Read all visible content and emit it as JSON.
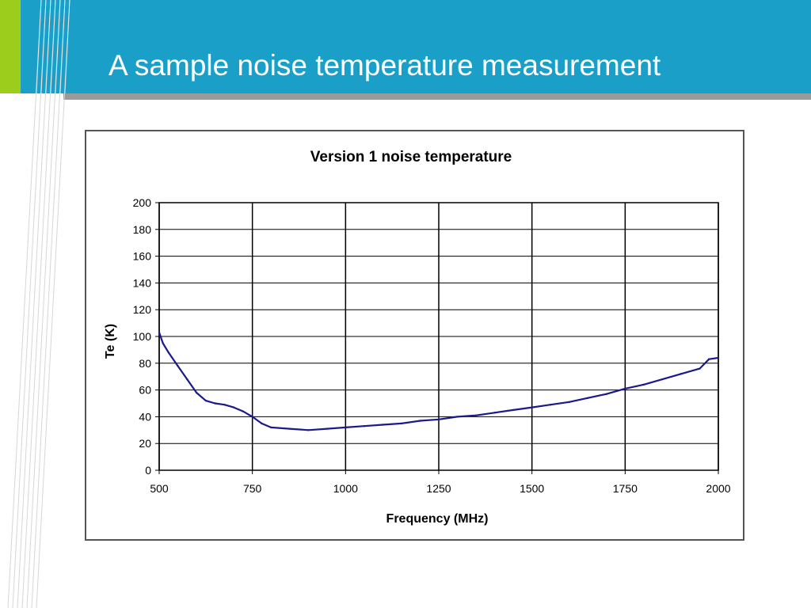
{
  "slide": {
    "title": "A sample noise temperature measurement"
  },
  "colors": {
    "header_band": "#1aa0c8",
    "accent_lime": "#9ccc1c",
    "rule_gray": "#9a9a9a",
    "series_line": "#1a1a8c"
  },
  "chart_data": {
    "type": "line",
    "title": "Version 1 noise temperature",
    "xlabel": "Frequency (MHz)",
    "ylabel": "Te (K)",
    "xlim": [
      500,
      2000
    ],
    "ylim": [
      0,
      200
    ],
    "x_ticks": [
      500,
      750,
      1000,
      1250,
      1500,
      1750,
      2000
    ],
    "y_ticks": [
      0,
      20,
      40,
      60,
      80,
      100,
      120,
      140,
      160,
      180,
      200
    ],
    "grid": true,
    "legend": "none",
    "series": [
      {
        "x": [
          500,
          510,
          525,
          550,
          575,
          600,
          625,
          650,
          675,
          700,
          725,
          750,
          775,
          800,
          850,
          900,
          950,
          1000,
          1050,
          1100,
          1150,
          1200,
          1250,
          1300,
          1350,
          1400,
          1450,
          1500,
          1550,
          1600,
          1650,
          1700,
          1750,
          1800,
          1850,
          1900,
          1950,
          1975,
          2000
        ],
        "y": [
          103,
          95,
          88,
          78,
          68,
          58,
          52,
          50,
          49,
          47,
          44,
          40,
          35,
          32,
          31,
          30,
          31,
          32,
          33,
          34,
          35,
          37,
          38,
          40,
          41,
          43,
          45,
          47,
          49,
          51,
          54,
          57,
          61,
          64,
          68,
          72,
          76,
          83,
          84
        ]
      }
    ]
  }
}
